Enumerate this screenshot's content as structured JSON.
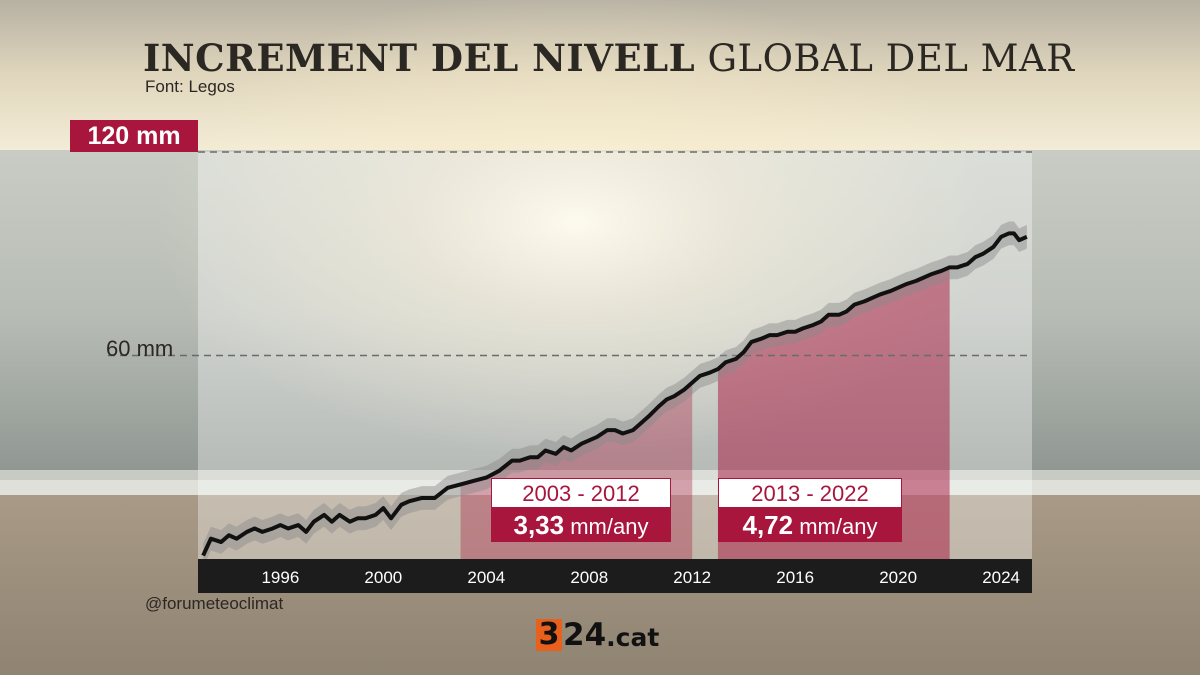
{
  "header": {
    "title_bold": "INCREMENT DEL NIVELL",
    "title_light": "GLOBAL DEL MAR",
    "source": "Font: Legos"
  },
  "axis": {
    "y_top_label": "120 mm",
    "y_mid_label": "60 mm"
  },
  "annotations": [
    {
      "range": "2003 - 2012",
      "rate_value": "3,33",
      "rate_unit": "mm/any"
    },
    {
      "range": "2013 - 2022",
      "rate_value": "4,72",
      "rate_unit": "mm/any"
    }
  ],
  "footer": {
    "credit": "@forumeteoclimat",
    "logo_mark": "3",
    "logo_word": "24",
    "logo_domain": ".cat"
  },
  "colors": {
    "accent": "#a8163d",
    "highlight_fill": "#c0506e",
    "axis_bar": "#1c1c1c",
    "line": "#111111",
    "band": "#8a8a8a"
  },
  "chart_data": {
    "type": "line",
    "title": "INCREMENT DEL NIVELL GLOBAL DEL MAR",
    "xlabel": "",
    "ylabel": "",
    "x_ticks": [
      1996,
      2000,
      2004,
      2008,
      2012,
      2016,
      2020,
      2024
    ],
    "y_ticks": [
      {
        "value": 60,
        "label": "60 mm"
      },
      {
        "value": 120,
        "label": "120 mm"
      }
    ],
    "xlim": [
      1992.8,
      2025.2
    ],
    "ylim": [
      0,
      120
    ],
    "highlights": [
      {
        "from": 2003,
        "to": 2012,
        "rate": "3,33 mm/any"
      },
      {
        "from": 2013,
        "to": 2022,
        "rate": "4,72 mm/any"
      }
    ],
    "x": [
      1993.0,
      1993.3,
      1993.7,
      1994.0,
      1994.3,
      1994.7,
      1995.0,
      1995.3,
      1995.7,
      1996.0,
      1996.3,
      1996.7,
      1997.0,
      1997.3,
      1997.7,
      1998.0,
      1998.3,
      1998.7,
      1999.0,
      1999.3,
      1999.7,
      2000.0,
      2000.3,
      2000.7,
      2001.0,
      2001.5,
      2002.0,
      2002.5,
      2003.0,
      2003.5,
      2004.0,
      2004.5,
      2005.0,
      2005.3,
      2005.7,
      2006.0,
      2006.3,
      2006.7,
      2007.0,
      2007.3,
      2007.7,
      2008.0,
      2008.3,
      2008.7,
      2009.0,
      2009.3,
      2009.7,
      2010.0,
      2010.3,
      2010.7,
      2011.0,
      2011.3,
      2011.7,
      2012.0,
      2012.3,
      2012.7,
      2013.0,
      2013.3,
      2013.7,
      2014.0,
      2014.3,
      2014.7,
      2015.0,
      2015.3,
      2015.7,
      2016.0,
      2016.3,
      2016.7,
      2017.0,
      2017.3,
      2017.7,
      2018.0,
      2018.3,
      2018.7,
      2019.0,
      2019.3,
      2019.7,
      2020.0,
      2020.3,
      2020.7,
      2021.0,
      2021.3,
      2021.7,
      2022.0,
      2022.3,
      2022.7,
      2023.0,
      2023.3,
      2023.7,
      2024.0,
      2024.3,
      2024.5,
      2024.7,
      2025.0
    ],
    "values": [
      1,
      6,
      5,
      7,
      6,
      8,
      9,
      8,
      9,
      10,
      9,
      10,
      8,
      11,
      13,
      11,
      13,
      11,
      12,
      12,
      13,
      15,
      12,
      16,
      17,
      18,
      18,
      21,
      22,
      23,
      24,
      26,
      29,
      29,
      30,
      30,
      32,
      31,
      33,
      32,
      34,
      35,
      36,
      38,
      38,
      37,
      38,
      40,
      42,
      45,
      47,
      48,
      50,
      52,
      54,
      55,
      56,
      58,
      59,
      61,
      64,
      65,
      66,
      66,
      67,
      67,
      68,
      69,
      70,
      72,
      72,
      73,
      75,
      76,
      77,
      78,
      79,
      80,
      81,
      82,
      83,
      84,
      85,
      86,
      86,
      87,
      89,
      90,
      92,
      95,
      96,
      96,
      94,
      95
    ]
  }
}
